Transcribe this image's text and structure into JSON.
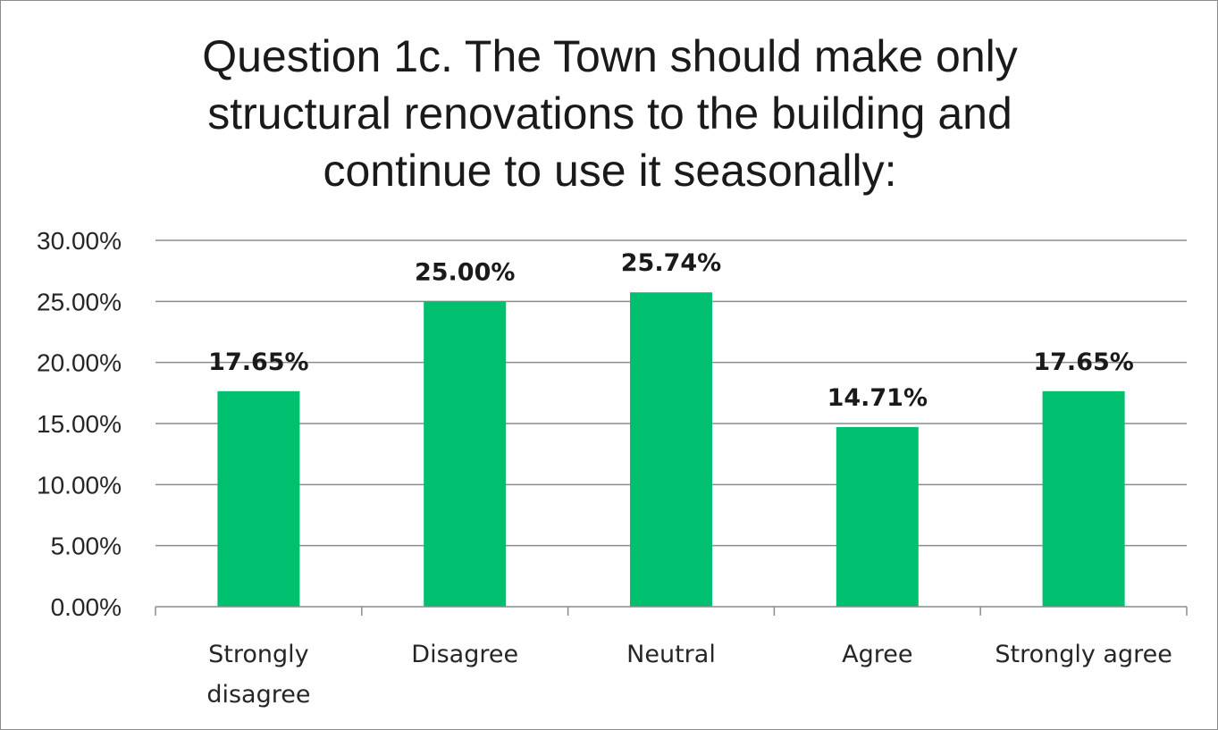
{
  "chart_data": {
    "type": "bar",
    "title_lines": [
      "Question 1c. The Town should make only",
      "structural renovations to the building and",
      "continue to use it seasonally:"
    ],
    "categories": [
      [
        "Strongly",
        "disagree"
      ],
      [
        "Disagree"
      ],
      [
        "Neutral"
      ],
      [
        "Agree"
      ],
      [
        "Strongly agree"
      ]
    ],
    "values": [
      17.65,
      25.0,
      25.74,
      14.71,
      17.65
    ],
    "data_labels": [
      "17.65%",
      "25.00%",
      "25.74%",
      "14.71%",
      "17.65%"
    ],
    "y_ticks": [
      0,
      5,
      10,
      15,
      20,
      25,
      30
    ],
    "y_tick_labels": [
      "0.00%",
      "5.00%",
      "10.00%",
      "15.00%",
      "20.00%",
      "25.00%",
      "30.00%"
    ],
    "ylim": [
      0,
      30
    ],
    "grid": true,
    "legend": "none",
    "bar_color": "#00bf6f",
    "grid_color": "#8c8c8c"
  }
}
